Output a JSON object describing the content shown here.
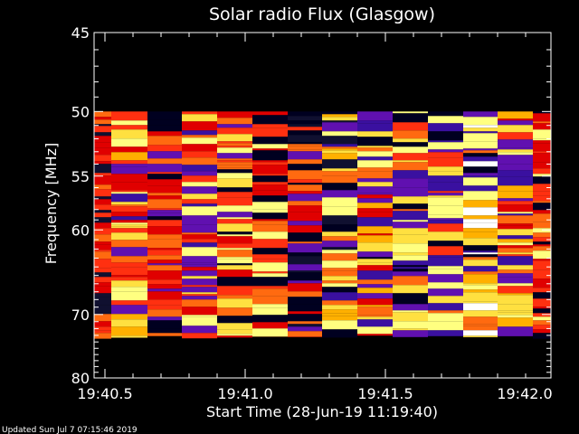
{
  "chart_data": {
    "type": "heatmap",
    "title": "Solar radio Flux (Glasgow)",
    "xlabel": "Start Time (28-Jun-19 11:19:40)",
    "ylabel": "Frequency [MHz]",
    "xlim": [
      "19:40.43",
      "19:42.08"
    ],
    "ylim": [
      80,
      45
    ],
    "x_ticks": [
      "19:40.5",
      "19:41.0",
      "19:41.5",
      "19:42.0"
    ],
    "y_ticks": [
      "45",
      "50",
      "55",
      "60",
      "70",
      "80"
    ],
    "data_freq_range_mhz": [
      50,
      73.5
    ],
    "time_columns": 13,
    "grid": false,
    "colormap": [
      "#000020",
      "#101030",
      "#3a10a0",
      "#6010b0",
      "#e00000",
      "#ff3010",
      "#ff6a10",
      "#ffb000",
      "#ffe040",
      "#ffff80",
      "#ffffff"
    ],
    "background": "#000000",
    "footer": "Updated Sun Jul  7 07:15:46 2019"
  }
}
